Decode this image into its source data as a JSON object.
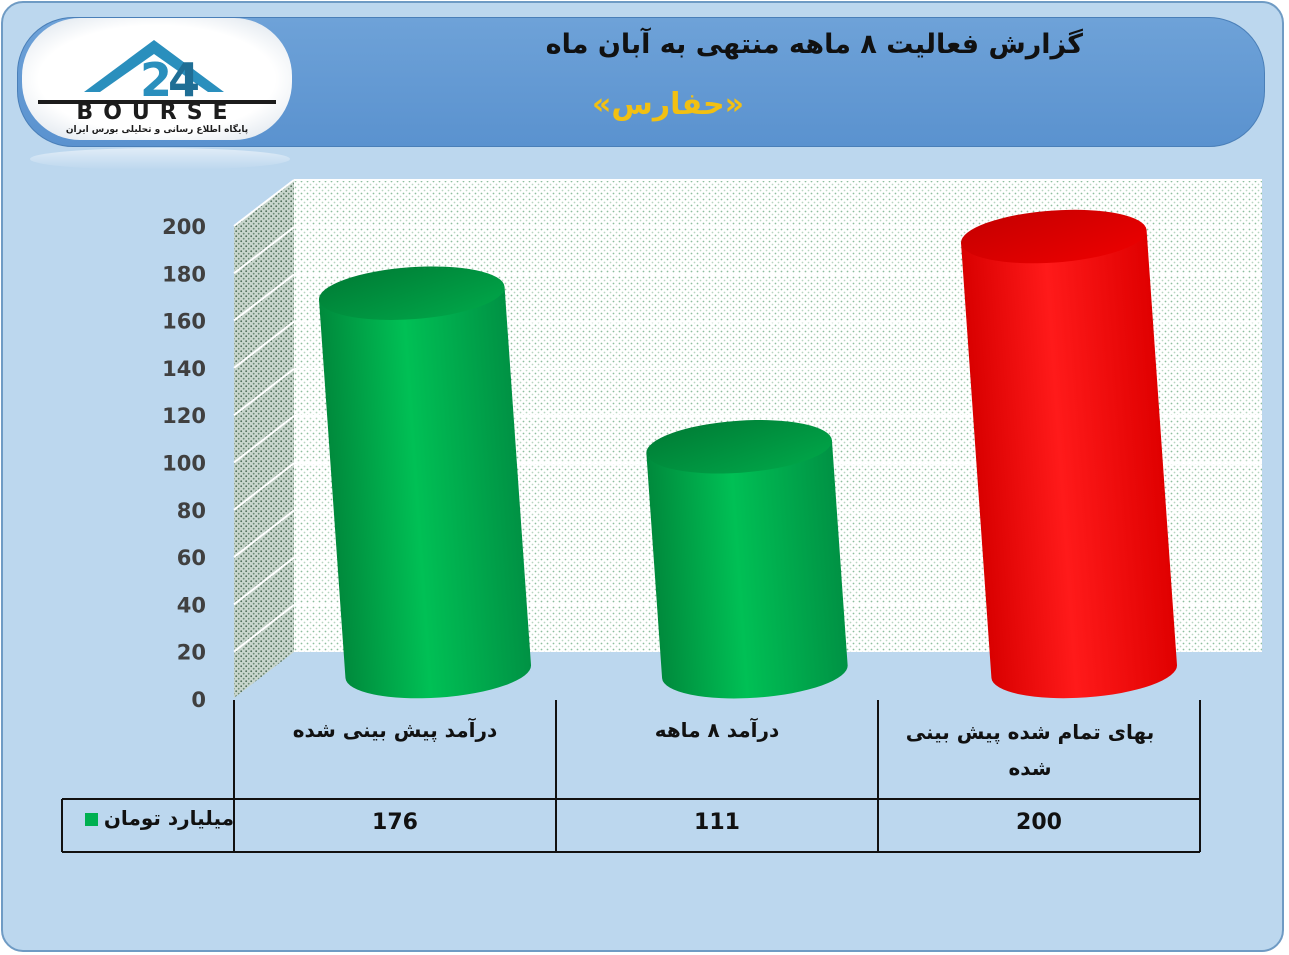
{
  "header": {
    "title": "گزارش فعالیت ۸ ماهه منتهی به آبان ماه",
    "subtitle": "«حفارس»",
    "logo_text": "BOURSE",
    "logo_tagline": "پایگاه اطلاع رسانی و تحلیلی بورس ایران"
  },
  "colors": {
    "background": "#bcd7ee",
    "banner": "#5b93d0",
    "subtitle": "#f2c012",
    "green": "#00b050",
    "red": "#ff0000",
    "logo_blue": "#2a8fbd"
  },
  "chart_data": {
    "type": "bar",
    "style": "3d-cylinder",
    "categories": [
      "درآمد پیش بینی شده",
      "درآمد ۸ ماهه",
      "بهای تمام شده پیش بینی شده"
    ],
    "values": [
      176,
      111,
      200
    ],
    "bar_colors": [
      "#00b050",
      "#00b050",
      "#ff0000"
    ],
    "series": [
      {
        "name": "میلیارد تومان",
        "values": [
          176,
          111,
          200
        ]
      }
    ],
    "value_labels": [
      "176",
      "111",
      "200"
    ],
    "ylim": [
      0,
      200
    ],
    "yticks": [
      "0",
      "20",
      "40",
      "60",
      "80",
      "100",
      "120",
      "140",
      "160",
      "180",
      "200"
    ],
    "legend": "data-table",
    "grid": true
  }
}
